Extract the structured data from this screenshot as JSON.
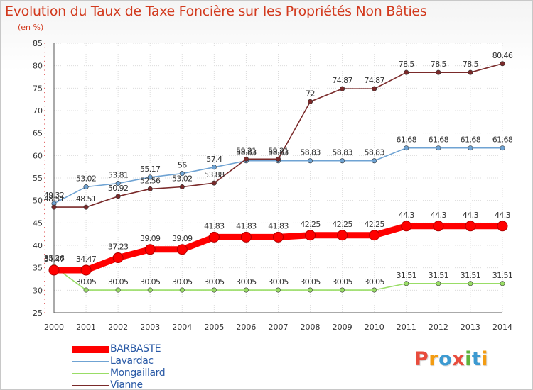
{
  "title": "Evolution du Taux de Taxe Foncière sur les Propriétés Non Bâties",
  "subtitle": "(en %)",
  "logo": {
    "text": "Proxiti",
    "letters": [
      "P",
      "r",
      "o",
      "x",
      "i",
      "t",
      "i"
    ],
    "colors": [
      "#e84c3d",
      "#f39c12",
      "#3d9ad1",
      "#e84c3d",
      "#5fb33c",
      "#3d9ad1",
      "#f39c12"
    ]
  },
  "chart_data": {
    "type": "line",
    "title": "Evolution du Taux de Taxe Foncière sur les Propriétés Non Bâties",
    "ylabel": "(en %)",
    "xlabel": "",
    "ylim": [
      25,
      85
    ],
    "yticks": [
      25,
      30,
      35,
      40,
      45,
      50,
      55,
      60,
      65,
      70,
      75,
      80,
      85
    ],
    "grid": true,
    "categories": [
      "2000",
      "2001",
      "2002",
      "2003",
      "2004",
      "2005",
      "2006",
      "2007",
      "2008",
      "2009",
      "2010",
      "2011",
      "2012",
      "2013",
      "2014"
    ],
    "series": [
      {
        "name": "BARBASTE",
        "color": "#ff0000",
        "emphasis": true,
        "values": [
          34.47,
          34.47,
          37.23,
          39.09,
          39.09,
          41.83,
          41.83,
          41.83,
          42.25,
          42.25,
          42.25,
          44.3,
          44.3,
          44.3,
          44.3
        ],
        "labels": [
          "34.47",
          "34.47",
          "37.23",
          "39.09",
          "39.09",
          "41.83",
          "41.83",
          "41.83",
          "42.25",
          "42.25",
          "42.25",
          "44.3",
          "44.3",
          "44.3",
          "44.3"
        ]
      },
      {
        "name": "Lavardac",
        "color": "#6fa3d3",
        "emphasis": false,
        "values": [
          49.32,
          53.02,
          53.81,
          55.17,
          56,
          57.4,
          58.83,
          58.83,
          58.83,
          58.83,
          58.83,
          61.68,
          61.68,
          61.68,
          61.68
        ],
        "labels": [
          "49.32",
          "53.02",
          "53.81",
          "55.17",
          "56",
          "57.4",
          "58.83",
          "58.83",
          "58.83",
          "58.83",
          "58.83",
          "61.68",
          "61.68",
          "61.68",
          "61.68"
        ]
      },
      {
        "name": "Mongaillard",
        "color": "#99dd66",
        "emphasis": false,
        "values": [
          35.26,
          30.05,
          30.05,
          30.05,
          30.05,
          30.05,
          30.05,
          30.05,
          30.05,
          30.05,
          30.05,
          31.51,
          31.51,
          31.51,
          31.51
        ],
        "labels": [
          "35.26",
          "30.05",
          "30.05",
          "30.05",
          "30.05",
          "30.05",
          "30.05",
          "30.05",
          "30.05",
          "30.05",
          "30.05",
          "31.51",
          "31.51",
          "31.51",
          "31.51"
        ]
      },
      {
        "name": "Vianne",
        "color": "#7a2a2a",
        "emphasis": false,
        "values": [
          48.51,
          48.51,
          50.92,
          52.56,
          53.02,
          53.88,
          59.21,
          59.21,
          72,
          74.87,
          74.87,
          78.5,
          78.5,
          78.5,
          80.46
        ],
        "labels": [
          "48.51",
          "48.51",
          "50.92",
          "52.56",
          "53.02",
          "53.88",
          "59.21",
          "59.21",
          "72",
          "74.87",
          "74.87",
          "78.5",
          "78.5",
          "78.5",
          "80.46"
        ]
      }
    ],
    "legend": [
      "BARBASTE",
      "Lavardac",
      "Mongaillard",
      "Vianne"
    ],
    "legend_position": "bottom-left"
  }
}
